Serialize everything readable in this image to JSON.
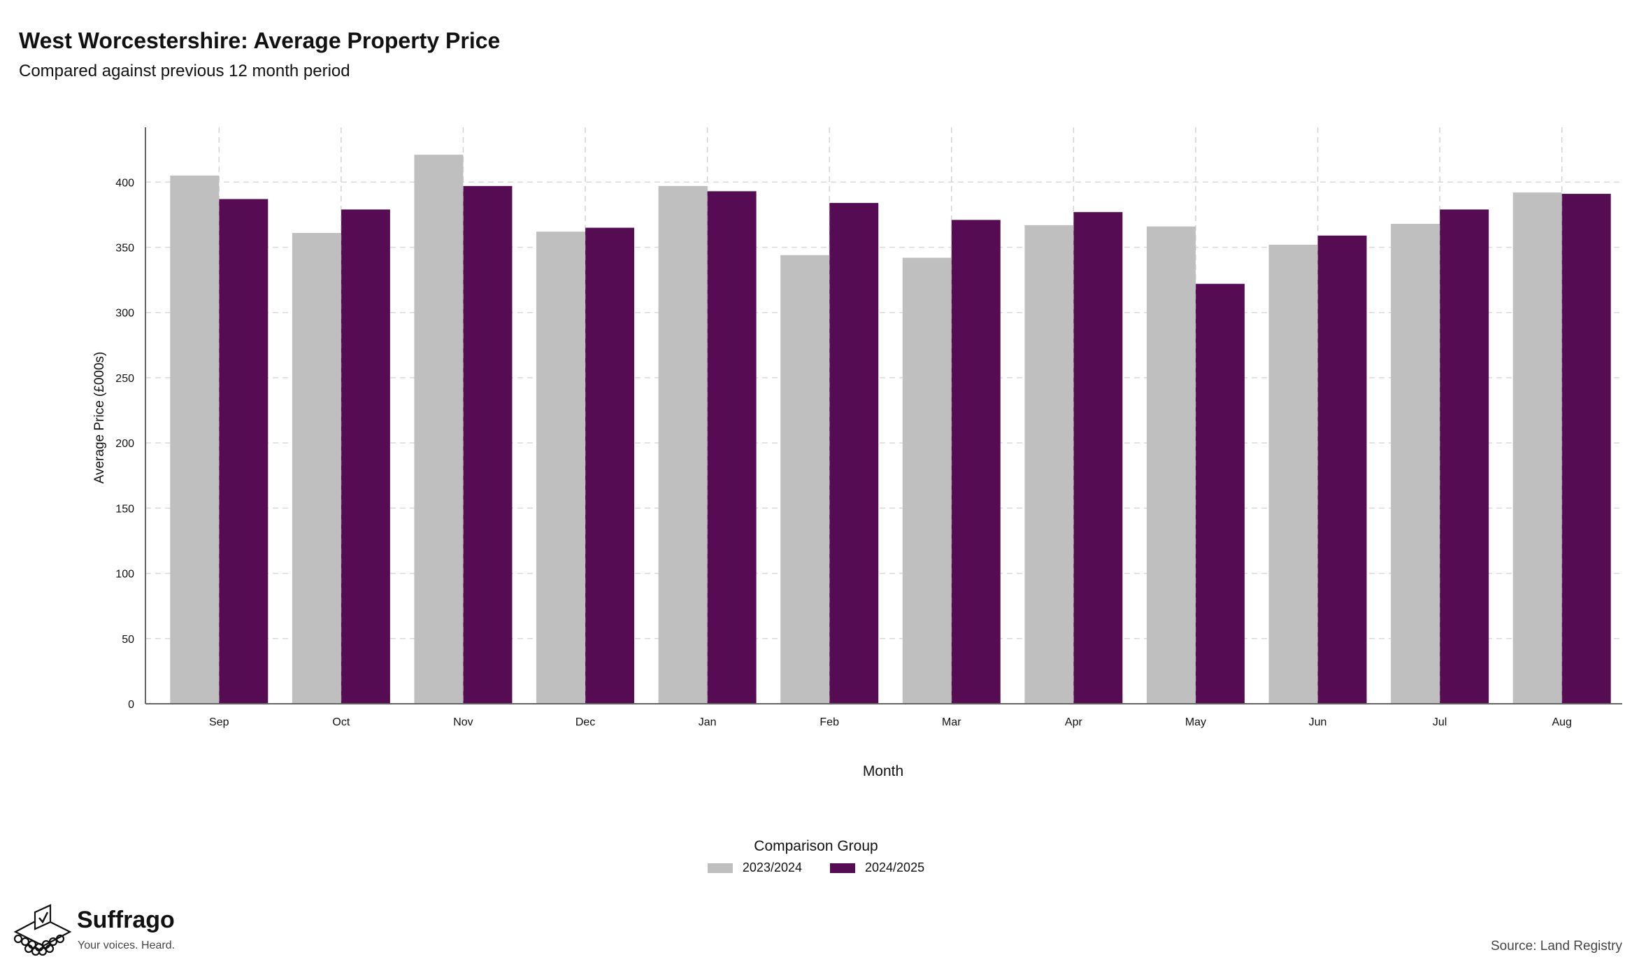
{
  "header": {
    "title": "West Worcestershire: Average Property Price",
    "subtitle": "Compared against previous 12 month period"
  },
  "chart_data": {
    "type": "bar",
    "categories": [
      "Sep",
      "Oct",
      "Nov",
      "Dec",
      "Jan",
      "Feb",
      "Mar",
      "Apr",
      "May",
      "Jun",
      "Jul",
      "Aug"
    ],
    "series": [
      {
        "name": "2023/2024",
        "color": "#bfbfbf",
        "values": [
          405,
          361,
          421,
          362,
          397,
          344,
          342,
          367,
          366,
          352,
          368,
          392
        ]
      },
      {
        "name": "2024/2025",
        "color": "#560c52",
        "values": [
          387,
          379,
          397,
          365,
          393,
          384,
          371,
          377,
          322,
          359,
          379,
          391
        ]
      }
    ],
    "xlabel": "Month",
    "ylabel": "Average Price (£000s)",
    "ylim": [
      0,
      442
    ],
    "yticks": [
      0,
      50,
      100,
      150,
      200,
      250,
      300,
      350,
      400
    ],
    "grid": true,
    "legend_title": "Comparison Group",
    "legend_position": "bottom"
  },
  "footer": {
    "brand_name": "Suffrago",
    "brand_tagline": "Your voices. Heard.",
    "source": "Source: Land Registry"
  }
}
